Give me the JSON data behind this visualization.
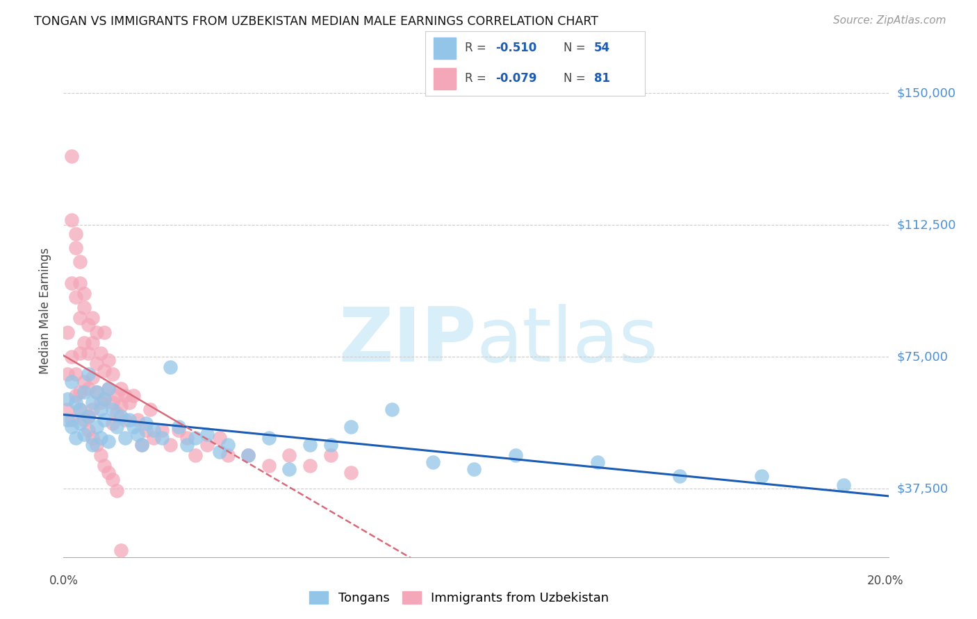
{
  "title": "TONGAN VS IMMIGRANTS FROM UZBEKISTAN MEDIAN MALE EARNINGS CORRELATION CHART",
  "source": "Source: ZipAtlas.com",
  "ylabel": "Median Male Earnings",
  "yticks": [
    37500,
    75000,
    112500,
    150000
  ],
  "ytick_labels": [
    "$37,500",
    "$75,000",
    "$112,500",
    "$150,000"
  ],
  "xmin": 0.0,
  "xmax": 0.201,
  "ymin": 18000,
  "ymax": 158000,
  "color_blue": "#92C5E8",
  "color_pink": "#F4A7B9",
  "trend_blue": "#1A5BB5",
  "trend_pink": "#D96878",
  "watermark_color": "#D8EEF8",
  "blue_x": [
    0.001,
    0.001,
    0.002,
    0.002,
    0.003,
    0.003,
    0.004,
    0.004,
    0.005,
    0.005,
    0.006,
    0.006,
    0.007,
    0.007,
    0.008,
    0.008,
    0.009,
    0.009,
    0.01,
    0.01,
    0.011,
    0.011,
    0.012,
    0.013,
    0.014,
    0.015,
    0.016,
    0.017,
    0.018,
    0.019,
    0.02,
    0.022,
    0.024,
    0.026,
    0.028,
    0.03,
    0.032,
    0.035,
    0.038,
    0.04,
    0.045,
    0.05,
    0.055,
    0.06,
    0.065,
    0.07,
    0.08,
    0.09,
    0.1,
    0.11,
    0.13,
    0.15,
    0.17,
    0.19
  ],
  "blue_y": [
    63000,
    57000,
    68000,
    55000,
    62000,
    52000,
    60000,
    56000,
    65000,
    53000,
    70000,
    58000,
    62000,
    50000,
    65000,
    55000,
    60000,
    52000,
    63000,
    57000,
    66000,
    51000,
    60000,
    55000,
    58000,
    52000,
    57000,
    55000,
    53000,
    50000,
    56000,
    54000,
    52000,
    72000,
    55000,
    50000,
    52000,
    53000,
    48000,
    50000,
    47000,
    52000,
    43000,
    50000,
    50000,
    55000,
    60000,
    45000,
    43000,
    47000,
    45000,
    41000,
    41000,
    38500
  ],
  "pink_x": [
    0.001,
    0.001,
    0.001,
    0.002,
    0.002,
    0.002,
    0.002,
    0.003,
    0.003,
    0.003,
    0.003,
    0.004,
    0.004,
    0.004,
    0.004,
    0.004,
    0.005,
    0.005,
    0.005,
    0.005,
    0.006,
    0.006,
    0.006,
    0.006,
    0.007,
    0.007,
    0.007,
    0.007,
    0.008,
    0.008,
    0.008,
    0.009,
    0.009,
    0.01,
    0.01,
    0.01,
    0.011,
    0.011,
    0.012,
    0.012,
    0.012,
    0.013,
    0.013,
    0.014,
    0.014,
    0.015,
    0.015,
    0.016,
    0.017,
    0.018,
    0.019,
    0.02,
    0.021,
    0.022,
    0.024,
    0.026,
    0.028,
    0.03,
    0.032,
    0.035,
    0.038,
    0.04,
    0.045,
    0.05,
    0.055,
    0.06,
    0.065,
    0.07,
    0.002,
    0.003,
    0.004,
    0.005,
    0.006,
    0.007,
    0.008,
    0.009,
    0.01,
    0.011,
    0.012,
    0.013,
    0.014
  ],
  "pink_y": [
    82000,
    70000,
    60000,
    132000,
    114000,
    96000,
    75000,
    110000,
    106000,
    92000,
    70000,
    102000,
    96000,
    86000,
    76000,
    65000,
    93000,
    89000,
    79000,
    68000,
    84000,
    76000,
    66000,
    58000,
    86000,
    79000,
    69000,
    60000,
    82000,
    73000,
    65000,
    76000,
    62000,
    82000,
    71000,
    63000,
    74000,
    66000,
    70000,
    62000,
    56000,
    64000,
    59000,
    66000,
    61000,
    64000,
    57000,
    62000,
    64000,
    57000,
    50000,
    54000,
    60000,
    52000,
    54000,
    50000,
    54000,
    52000,
    47000,
    50000,
    52000,
    47000,
    47000,
    44000,
    47000,
    44000,
    47000,
    42000,
    57000,
    64000,
    60000,
    57000,
    54000,
    52000,
    50000,
    47000,
    44000,
    42000,
    40000,
    37000,
    20000
  ]
}
